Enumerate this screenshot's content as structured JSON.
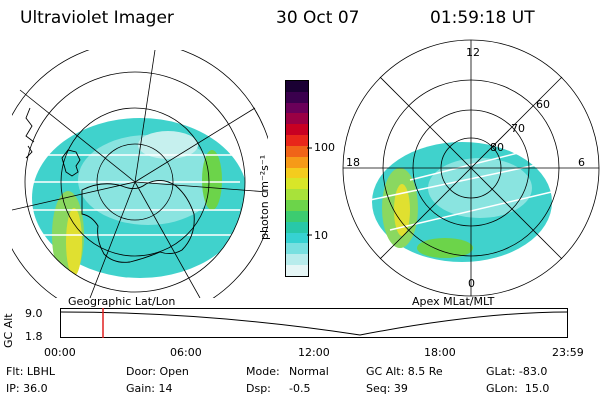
{
  "header": {
    "title": "Ultraviolet Imager",
    "date": "30 Oct 07",
    "time": "01:59:18 UT"
  },
  "left_panel": {
    "caption": "Geographic Lat/Lon"
  },
  "right_panel": {
    "caption": "Apex MLat/MLT",
    "mlt_labels": [
      "12",
      "18",
      "6",
      "0"
    ],
    "lat_labels": [
      "60",
      "70",
      "80"
    ]
  },
  "colorbar": {
    "unit_label": "photon cm⁻²s⁻¹",
    "tick_labels": [
      "100",
      "10"
    ],
    "colors": [
      "#1a0033",
      "#3a004d",
      "#6a0059",
      "#9a0044",
      "#c80022",
      "#e8261a",
      "#f06418",
      "#f69a18",
      "#f4cc1e",
      "#d8e628",
      "#a8e23a",
      "#6cd44a",
      "#3ccc70",
      "#28c8a8",
      "#36d2d2",
      "#78e0e0",
      "#b8ecec",
      "#e6f6f6"
    ]
  },
  "timeline": {
    "axis_label": "GC Alt",
    "y_labels": [
      "9.0",
      "1.8"
    ],
    "time_labels": [
      "00:00",
      "06:00",
      "12:00",
      "18:00",
      "23:59"
    ],
    "marker_time": "01:59"
  },
  "info": {
    "col1": [
      "Flt: LBHL",
      "IP: 36.0"
    ],
    "col2": [
      "Door: Open",
      "Gain: 14"
    ],
    "col3a": [
      "Mode:",
      "Dsp:"
    ],
    "col3b": [
      "Normal",
      "-0.5"
    ],
    "col4": [
      "GC Alt: 8.5 Re",
      "Seq: 39"
    ],
    "col5": [
      "GLat: -83.0",
      "GLon:  15.0"
    ]
  }
}
